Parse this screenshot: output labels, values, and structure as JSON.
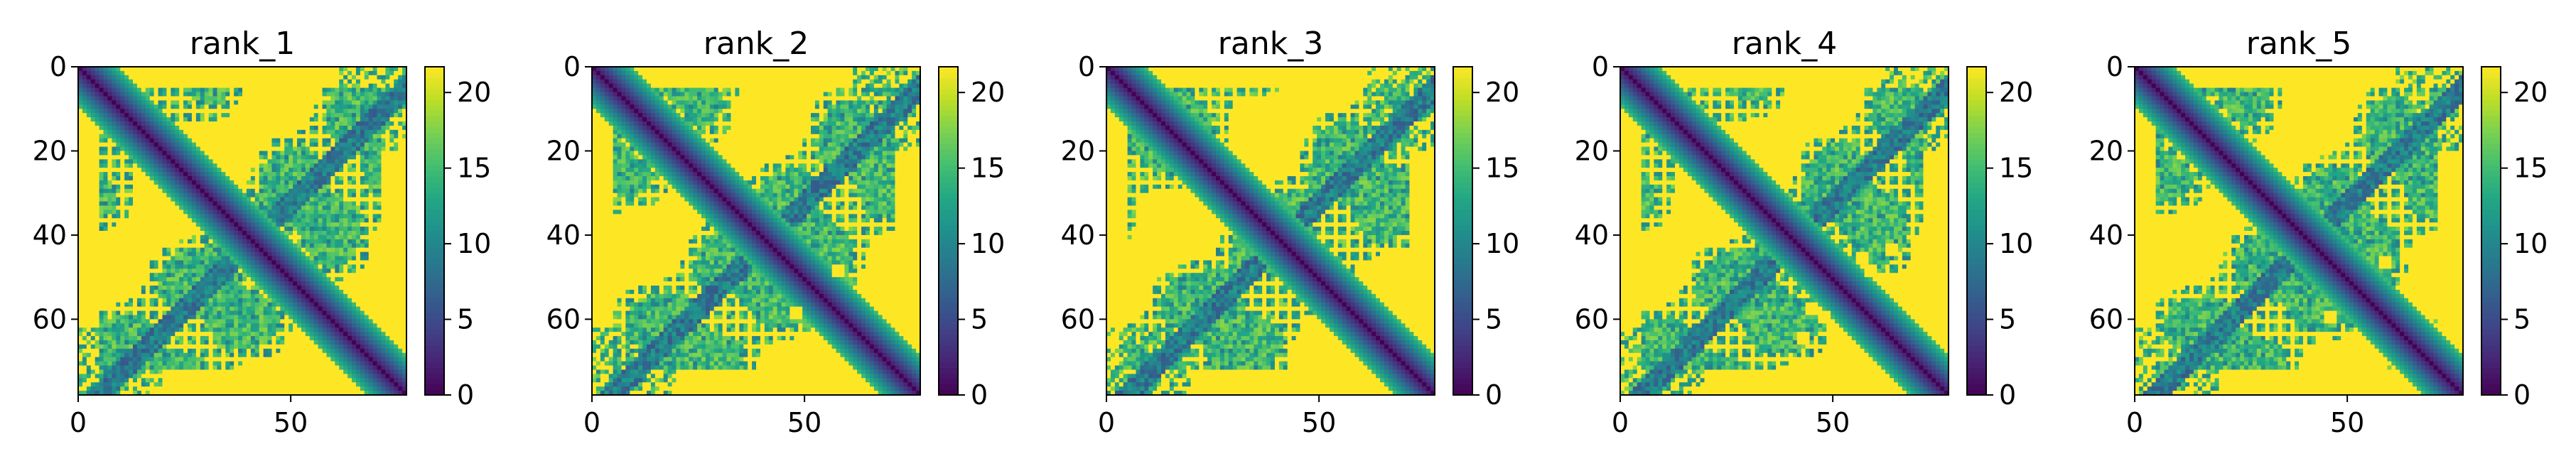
{
  "chart_data": [
    {
      "type": "heatmap",
      "title": "rank_1",
      "x_ticks": [
        "0",
        "50"
      ],
      "y_ticks": [
        "0",
        "20",
        "40",
        "60"
      ],
      "colorbar_ticks": [
        "0",
        "5",
        "10",
        "15",
        "20"
      ],
      "xlim": [
        0,
        78
      ],
      "ylim": [
        78,
        0
      ],
      "value_range": [
        0,
        21.7
      ],
      "matrix_size": 78,
      "colormap": "viridis",
      "low_confidence_patches": []
    },
    {
      "type": "heatmap",
      "title": "rank_2",
      "x_ticks": [
        "0",
        "50"
      ],
      "y_ticks": [
        "0",
        "20",
        "40",
        "60"
      ],
      "colorbar_ticks": [
        "0",
        "5",
        "10",
        "15",
        "20"
      ],
      "xlim": [
        0,
        78
      ],
      "ylim": [
        78,
        0
      ],
      "value_range": [
        0,
        21.7
      ],
      "matrix_size": 78,
      "colormap": "viridis",
      "low_confidence_patches": [
        [
          58,
          48
        ],
        [
          48,
          58
        ]
      ]
    },
    {
      "type": "heatmap",
      "title": "rank_3",
      "x_ticks": [
        "0",
        "50"
      ],
      "y_ticks": [
        "0",
        "20",
        "40",
        "60"
      ],
      "colorbar_ticks": [
        "0",
        "5",
        "10",
        "15",
        "20"
      ],
      "xlim": [
        0,
        78
      ],
      "ylim": [
        78,
        0
      ],
      "value_range": [
        0,
        21.7
      ],
      "matrix_size": 78,
      "colormap": "viridis",
      "low_confidence_patches": [
        [
          60,
          47
        ],
        [
          47,
          60
        ],
        [
          44,
          66
        ],
        [
          66,
          44
        ]
      ]
    },
    {
      "type": "heatmap",
      "title": "rank_4",
      "x_ticks": [
        "0",
        "50"
      ],
      "y_ticks": [
        "0",
        "20",
        "40",
        "60"
      ],
      "colorbar_ticks": [
        "0",
        "5",
        "10",
        "15",
        "20"
      ],
      "xlim": [
        0,
        78
      ],
      "ylim": [
        78,
        0
      ],
      "value_range": [
        0,
        21.7
      ],
      "matrix_size": 78,
      "colormap": "viridis",
      "low_confidence_patches": [
        [
          57,
          45
        ],
        [
          45,
          57
        ],
        [
          59,
          48
        ],
        [
          48,
          59
        ],
        [
          43,
          64
        ],
        [
          64,
          43
        ]
      ]
    },
    {
      "type": "heatmap",
      "title": "rank_5",
      "x_ticks": [
        "0",
        "50"
      ],
      "y_ticks": [
        "0",
        "20",
        "40",
        "60"
      ],
      "colorbar_ticks": [
        "0",
        "5",
        "10",
        "15",
        "20"
      ],
      "xlim": [
        0,
        78
      ],
      "ylim": [
        78,
        0
      ],
      "value_range": [
        0,
        21.7
      ],
      "matrix_size": 78,
      "colormap": "viridis",
      "low_confidence_patches": [
        [
          59,
          46
        ],
        [
          46,
          59
        ],
        [
          45,
          65
        ],
        [
          65,
          45
        ]
      ]
    }
  ]
}
